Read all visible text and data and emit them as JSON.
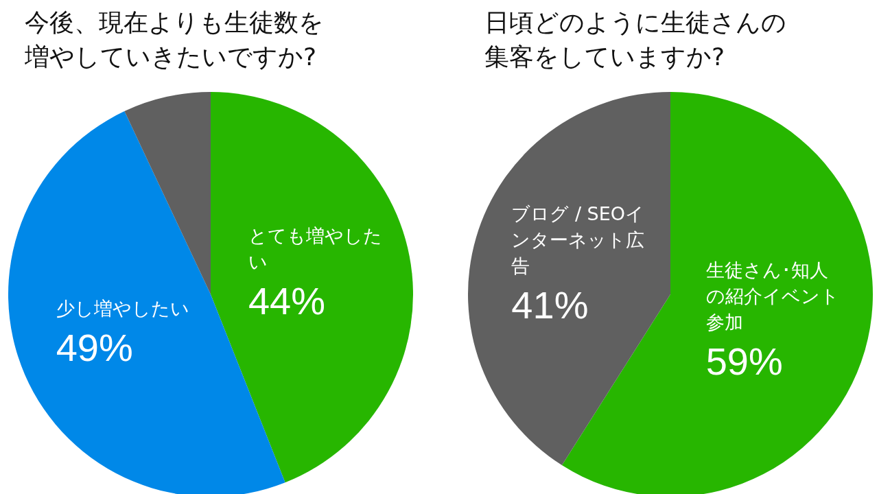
{
  "chart_data": [
    {
      "type": "pie",
      "title": "今後、現在よりも生徒数を増やしていきたいですか?",
      "categories": [
        "とても増やしたい",
        "少し増やしたい",
        null
      ],
      "values": [
        44,
        49,
        7
      ],
      "colors": [
        "#27b600",
        "#0088e8",
        "#606060"
      ],
      "value_labels": [
        "44%",
        "49%",
        null
      ]
    },
    {
      "type": "pie",
      "title": "日頃どのように生徒さんの集客をしていますか?",
      "categories": [
        "生徒さん･知人の紹介イベント参加",
        "ブログ / SEOインターネット広告"
      ],
      "values": [
        59,
        41
      ],
      "colors": [
        "#27b600",
        "#606060"
      ],
      "value_labels": [
        "59%",
        "41%"
      ]
    }
  ]
}
